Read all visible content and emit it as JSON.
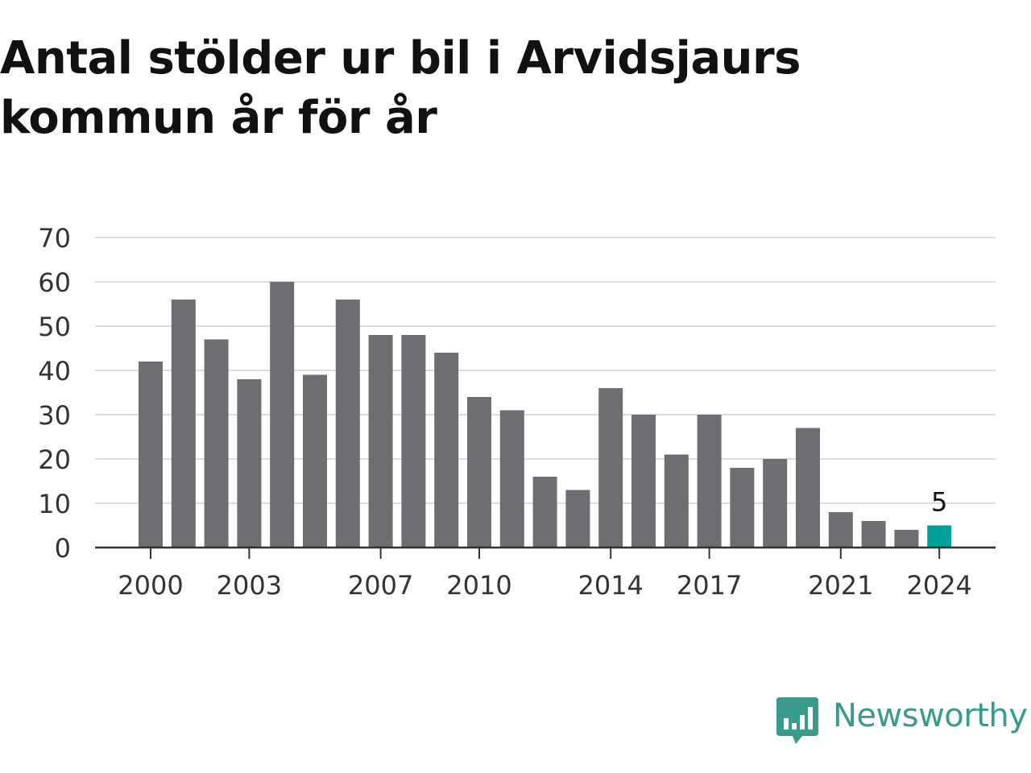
{
  "title": "Antal stölder ur bil i Arvidsjaurs kommun år för år",
  "brand": {
    "name": "Newsworthy",
    "logo_icon": "newsworthy-bar-chart-icon",
    "color": "#3a9a8c"
  },
  "colors": {
    "bar": "#6d6d72",
    "highlight": "#00a096",
    "grid": "#dcdcdc",
    "axis": "#333333",
    "tick_text": "#333333"
  },
  "chart_data": {
    "type": "bar",
    "title": "Antal stölder ur bil i Arvidsjaurs kommun år för år",
    "xlabel": "",
    "ylabel": "",
    "categories": [
      2000,
      2001,
      2002,
      2003,
      2004,
      2005,
      2006,
      2007,
      2008,
      2009,
      2010,
      2011,
      2012,
      2013,
      2014,
      2015,
      2016,
      2017,
      2018,
      2019,
      2020,
      2021,
      2022,
      2023,
      2024
    ],
    "values": [
      42,
      56,
      47,
      38,
      60,
      39,
      56,
      48,
      48,
      44,
      34,
      31,
      16,
      13,
      36,
      30,
      21,
      30,
      18,
      20,
      27,
      8,
      6,
      4,
      5
    ],
    "x_tick_labels": [
      "2000",
      "2003",
      "2007",
      "2010",
      "2014",
      "2017",
      "2021",
      "2024"
    ],
    "y_ticks": [
      0,
      10,
      20,
      30,
      40,
      50,
      60,
      70
    ],
    "ylim": [
      0,
      70
    ],
    "grid": true,
    "highlight": {
      "category": 2024,
      "label": "5"
    }
  }
}
